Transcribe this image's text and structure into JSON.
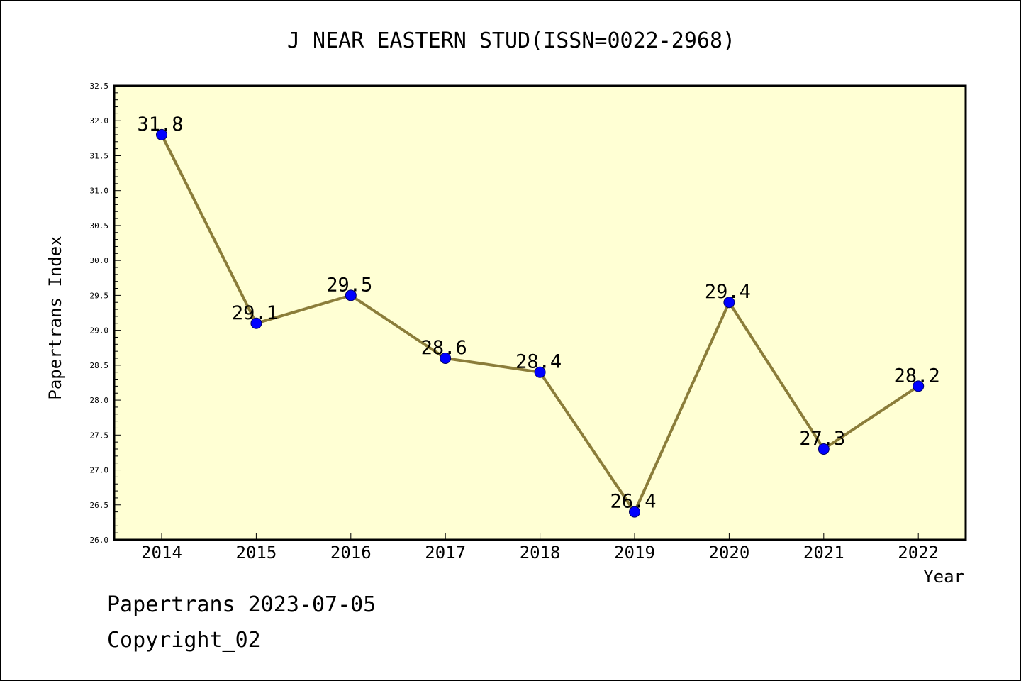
{
  "chart_data": {
    "type": "line",
    "title": "J NEAR EASTERN STUD(ISSN=0022-2968)",
    "xlabel": "Year",
    "ylabel": "Papertrans Index",
    "categories": [
      "2014",
      "2015",
      "2016",
      "2017",
      "2018",
      "2019",
      "2020",
      "2021",
      "2022"
    ],
    "series": [
      {
        "values": [
          31.8,
          29.1,
          29.5,
          28.6,
          28.4,
          26.4,
          29.4,
          27.3,
          28.2
        ]
      }
    ],
    "data_labels": [
      "31.8",
      "29.1",
      "29.5",
      "28.6",
      "28.4",
      "26.4",
      "29.4",
      "27.3",
      "28.2"
    ],
    "ylim": [
      26.0,
      32.5
    ],
    "yticks": [
      "26.0",
      "26.5",
      "27.0",
      "27.5",
      "28.0",
      "28.5",
      "29.0",
      "29.5",
      "30.0",
      "30.5",
      "31.0",
      "31.5",
      "32.0",
      "32.5"
    ],
    "grid": false,
    "legend": "none",
    "colors": {
      "plot_background": "#ffffd4",
      "line": "#8b7d3a",
      "marker": "#0000ff",
      "axis": "#000000"
    }
  },
  "footer": {
    "line1": "Papertrans 2023-07-05",
    "line2": "Copyright_02"
  }
}
